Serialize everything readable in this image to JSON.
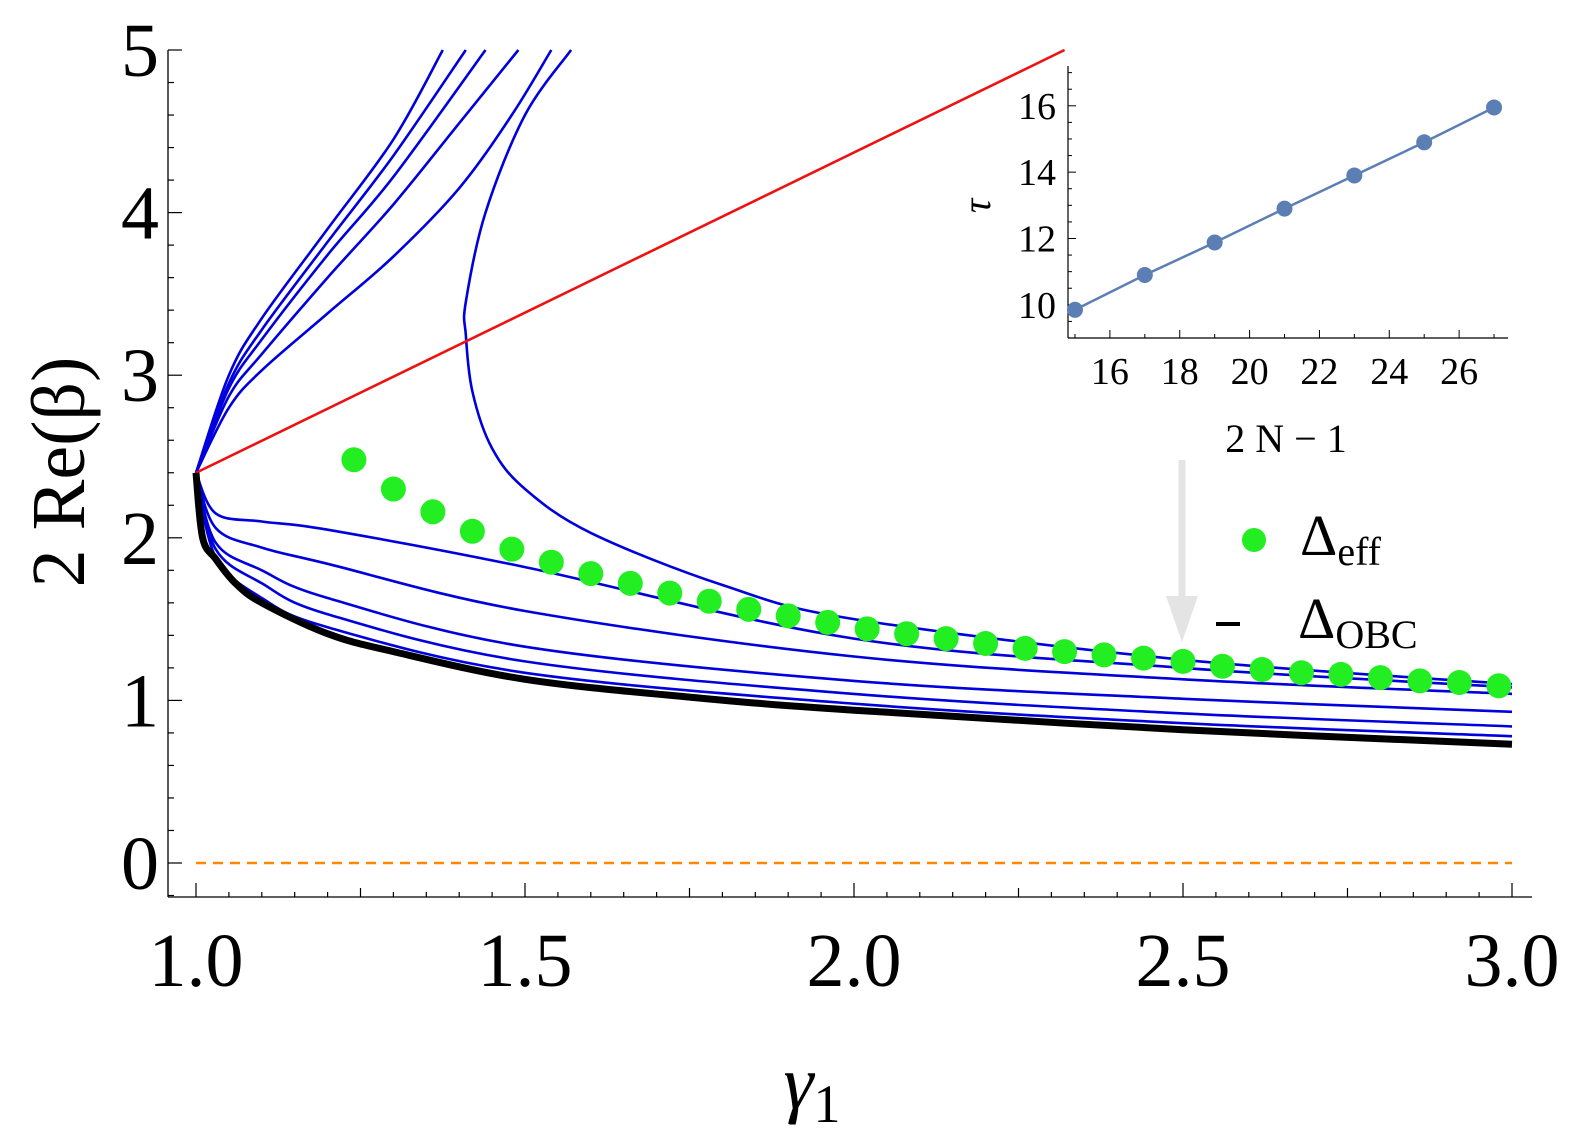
{
  "chart_data": {
    "type": "line",
    "xlabel": "γ",
    "xlabel_sub": "1",
    "ylabel": "2 Re(β)",
    "xlim": [
      1.0,
      3.0
    ],
    "ylim": [
      -0.1,
      5.0
    ],
    "x_ticks": [
      "1.0",
      "1.5",
      "2.0",
      "2.5",
      "3.0"
    ],
    "y_ticks": [
      "0",
      "1",
      "2",
      "3",
      "4",
      "5"
    ],
    "colors": {
      "curves": "#0000dd",
      "red_line": "#ee1111",
      "obc": "#000000",
      "eff": "#22ee22",
      "zero": "#ff8800",
      "inset": "#5b7fb5"
    },
    "legend": {
      "placement": "right",
      "entries": [
        {
          "symbol": "Δ",
          "sub": "eff",
          "marker": "dot"
        },
        {
          "symbol": "Δ",
          "sub": "OBC",
          "marker": "dash"
        }
      ]
    },
    "red_line": {
      "x": [
        1.0,
        2.32
      ],
      "y": [
        2.4,
        5.0
      ]
    },
    "zero_line": {
      "y": 0
    },
    "obc_curve": {
      "x": [
        1.0,
        1.01,
        1.03,
        1.06,
        1.1,
        1.2,
        1.3,
        1.5,
        1.75,
        2.0,
        2.5,
        3.0
      ],
      "y": [
        2.4,
        2.0,
        1.87,
        1.72,
        1.6,
        1.41,
        1.3,
        1.13,
        1.02,
        0.94,
        0.82,
        0.73
      ]
    },
    "pbc_curves_below": [
      {
        "x": [
          1.0,
          1.03,
          1.1,
          1.2,
          1.5,
          2.0,
          2.5,
          3.0
        ],
        "y": [
          2.4,
          1.88,
          1.63,
          1.45,
          1.17,
          0.98,
          0.86,
          0.78
        ]
      },
      {
        "x": [
          1.0,
          1.03,
          1.1,
          1.2,
          1.5,
          2.0,
          2.5,
          3.0
        ],
        "y": [
          2.4,
          1.93,
          1.72,
          1.53,
          1.24,
          1.04,
          0.92,
          0.84
        ]
      },
      {
        "x": [
          1.0,
          1.03,
          1.1,
          1.2,
          1.5,
          2.0,
          2.5,
          3.0
        ],
        "y": [
          2.4,
          1.97,
          1.8,
          1.63,
          1.33,
          1.12,
          1.01,
          0.93
        ]
      },
      {
        "x": [
          1.0,
          1.03,
          1.1,
          1.2,
          1.5,
          2.0,
          2.5,
          3.0
        ],
        "y": [
          2.4,
          2.06,
          1.94,
          1.84,
          1.55,
          1.27,
          1.13,
          1.04
        ]
      },
      {
        "x": [
          1.0,
          1.03,
          1.1,
          1.2,
          1.5,
          2.0,
          2.5,
          3.0
        ],
        "y": [
          2.4,
          2.15,
          2.1,
          2.05,
          1.82,
          1.38,
          1.2,
          1.08
        ]
      }
    ],
    "pbc_curves_above": [
      {
        "x": [
          1.0,
          1.05,
          1.1,
          1.2,
          1.3,
          1.375
        ],
        "y": [
          2.4,
          3.0,
          3.35,
          3.9,
          4.45,
          5.0
        ]
      },
      {
        "x": [
          1.0,
          1.05,
          1.1,
          1.2,
          1.3,
          1.41
        ],
        "y": [
          2.4,
          2.95,
          3.28,
          3.82,
          4.35,
          5.0
        ]
      },
      {
        "x": [
          1.0,
          1.05,
          1.1,
          1.2,
          1.3,
          1.44
        ],
        "y": [
          2.4,
          2.92,
          3.22,
          3.74,
          4.22,
          5.0
        ]
      },
      {
        "x": [
          1.0,
          1.05,
          1.1,
          1.2,
          1.3,
          1.4,
          1.49
        ],
        "y": [
          2.4,
          2.87,
          3.13,
          3.6,
          4.05,
          4.55,
          5.0
        ]
      },
      {
        "x": [
          1.0,
          1.05,
          1.1,
          1.2,
          1.3,
          1.4,
          1.48,
          1.54
        ],
        "y": [
          2.4,
          2.8,
          3.03,
          3.38,
          3.73,
          4.15,
          4.6,
          5.0
        ]
      }
    ],
    "bending_curve": {
      "x": [
        1.0,
        1.08,
        1.2,
        1.3,
        1.38,
        1.41,
        1.41,
        1.44,
        1.5,
        1.57
      ],
      "y": [
        2.4,
        2.55,
        2.77,
        2.95,
        3.12,
        3.25,
        3.45,
        4.0,
        4.6,
        5.0
      ]
    },
    "bending_curve_lower": {
      "x": [
        1.41,
        1.42,
        1.45,
        1.5,
        1.6,
        1.8,
        2.0,
        2.5,
        3.0
      ],
      "y": [
        3.25,
        2.9,
        2.55,
        2.3,
        2.03,
        1.71,
        1.5,
        1.25,
        1.1
      ]
    },
    "eff_points": {
      "x": [
        1.24,
        1.3,
        1.36,
        1.42,
        1.48,
        1.54,
        1.6,
        1.66,
        1.72,
        1.78,
        1.84,
        1.9,
        1.96,
        2.02,
        2.08,
        2.14,
        2.2,
        2.26,
        2.32,
        2.38,
        2.44,
        2.5,
        2.56,
        2.62,
        2.68,
        2.74,
        2.8,
        2.86,
        2.92,
        2.98
      ],
      "y": [
        2.48,
        2.3,
        2.16,
        2.04,
        1.93,
        1.85,
        1.78,
        1.72,
        1.66,
        1.61,
        1.56,
        1.52,
        1.48,
        1.44,
        1.41,
        1.38,
        1.35,
        1.32,
        1.3,
        1.28,
        1.26,
        1.24,
        1.21,
        1.19,
        1.17,
        1.16,
        1.14,
        1.12,
        1.11,
        1.09
      ]
    },
    "inset": {
      "type": "line",
      "xlabel": "2 N − 1",
      "ylabel": "τ",
      "xlim": [
        14.8,
        27.4
      ],
      "ylim": [
        9.0,
        17.2
      ],
      "x_ticks": [
        "16",
        "18",
        "20",
        "22",
        "24",
        "26"
      ],
      "y_ticks": [
        "10",
        "12",
        "14",
        "16"
      ],
      "x": [
        15,
        17,
        19,
        21,
        23,
        25,
        27
      ],
      "y": [
        9.85,
        10.9,
        11.88,
        12.9,
        13.9,
        14.9,
        15.95
      ]
    }
  }
}
